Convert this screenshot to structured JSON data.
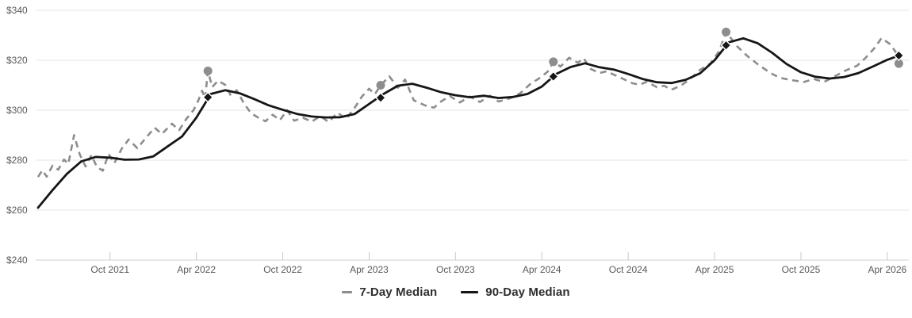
{
  "chart_data": {
    "type": "line",
    "title": "",
    "xlabel": "",
    "ylabel": "",
    "grid": "horizontal",
    "legend_position": "bottom-center",
    "y_axis": {
      "tick_labels": [
        "$340",
        "$320",
        "$300",
        "$280",
        "$260",
        "$240"
      ],
      "tick_values": [
        340,
        320,
        300,
        280,
        260,
        240
      ],
      "range": [
        240,
        344
      ]
    },
    "x_axis": {
      "tick_labels": [
        "Oct 2021",
        "Apr 2022",
        "Oct 2022",
        "Apr 2023",
        "Oct 2023",
        "Apr 2024",
        "Oct 2024",
        "Apr 2025",
        "Oct 2025",
        "Apr 2026"
      ],
      "tick_months": [
        5,
        11,
        17,
        23,
        29,
        35,
        41,
        47,
        53,
        59
      ],
      "months_span": 60,
      "start_label": "May 2021"
    },
    "series": [
      {
        "name": "7-Day Median",
        "style": "dashed",
        "color": "#8d8d8d",
        "points": [
          [
            0,
            273.3
          ],
          [
            0.3,
            276
          ],
          [
            0.6,
            273.4
          ],
          [
            1,
            277.8
          ],
          [
            1.4,
            276.2
          ],
          [
            1.8,
            280.3
          ],
          [
            2.1,
            278.5
          ],
          [
            2.5,
            290
          ],
          [
            2.9,
            282.3
          ],
          [
            3.3,
            277.5
          ],
          [
            3.7,
            282
          ],
          [
            4.1,
            277.2
          ],
          [
            4.5,
            275.8
          ],
          [
            4.9,
            282.5
          ],
          [
            5.3,
            278.8
          ],
          [
            5.8,
            284.5
          ],
          [
            6.3,
            288.3
          ],
          [
            6.9,
            284.8
          ],
          [
            7.5,
            289
          ],
          [
            8.1,
            293
          ],
          [
            8.6,
            290.5
          ],
          [
            9.3,
            294.6
          ],
          [
            9.8,
            292
          ],
          [
            10.3,
            296.5
          ],
          [
            10.8,
            300
          ],
          [
            11.1,
            303.5
          ],
          [
            11.4,
            307.8
          ],
          [
            11.6,
            304.5
          ],
          [
            11.8,
            315.7
          ],
          [
            12.1,
            309.3
          ],
          [
            12.5,
            311.8
          ],
          [
            13,
            310.2
          ],
          [
            13.4,
            305.8
          ],
          [
            13.8,
            308
          ],
          [
            14.3,
            302.8
          ],
          [
            14.8,
            298.8
          ],
          [
            15.3,
            297
          ],
          [
            15.8,
            295.6
          ],
          [
            16.3,
            298.2
          ],
          [
            16.8,
            296
          ],
          [
            17.3,
            300
          ],
          [
            17.8,
            295.8
          ],
          [
            18.4,
            297
          ],
          [
            19,
            295.4
          ],
          [
            19.6,
            297.6
          ],
          [
            20.2,
            295.3
          ],
          [
            20.8,
            299
          ],
          [
            21.4,
            296.6
          ],
          [
            22,
            301
          ],
          [
            22.5,
            305.5
          ],
          [
            23,
            308.6
          ],
          [
            23.4,
            306.4
          ],
          [
            23.8,
            310
          ],
          [
            24.4,
            313.6
          ],
          [
            25,
            309
          ],
          [
            25.5,
            312.3
          ],
          [
            26.1,
            304
          ],
          [
            26.9,
            301.9
          ],
          [
            27.5,
            301
          ],
          [
            28,
            303.5
          ],
          [
            28.6,
            305.7
          ],
          [
            29.3,
            303.1
          ],
          [
            30,
            305.5
          ],
          [
            30.7,
            303.3
          ],
          [
            31.4,
            305.8
          ],
          [
            32,
            303.5
          ],
          [
            32.8,
            304.8
          ],
          [
            33.5,
            306.8
          ],
          [
            34.2,
            310.5
          ],
          [
            34.8,
            312.7
          ],
          [
            35.4,
            315.4
          ],
          [
            35.8,
            319.4
          ],
          [
            36.3,
            317.5
          ],
          [
            36.9,
            321
          ],
          [
            37.5,
            319
          ],
          [
            37.9,
            320.8
          ],
          [
            38.4,
            316.5
          ],
          [
            39,
            314.9
          ],
          [
            39.5,
            315.6
          ],
          [
            40.1,
            314
          ],
          [
            40.7,
            312.4
          ],
          [
            41.3,
            310.8
          ],
          [
            41.8,
            310.2
          ],
          [
            42.3,
            311.4
          ],
          [
            43,
            309.2
          ],
          [
            43.5,
            309.8
          ],
          [
            44,
            308.2
          ],
          [
            44.7,
            310
          ],
          [
            45.3,
            312.5
          ],
          [
            46,
            316.2
          ],
          [
            46.7,
            318.7
          ],
          [
            47.3,
            323.5
          ],
          [
            47.8,
            331.3
          ],
          [
            48.6,
            325.4
          ],
          [
            49.3,
            321.6
          ],
          [
            50,
            318.4
          ],
          [
            50.8,
            315.2
          ],
          [
            51.5,
            313
          ],
          [
            52.4,
            312
          ],
          [
            53.2,
            311.3
          ],
          [
            53.9,
            312.5
          ],
          [
            54.6,
            311.3
          ],
          [
            55.4,
            313.7
          ],
          [
            56.1,
            315.9
          ],
          [
            56.9,
            317.8
          ],
          [
            57.5,
            321
          ],
          [
            58.1,
            324.8
          ],
          [
            58.6,
            328.9
          ],
          [
            59.2,
            326.4
          ],
          [
            59.6,
            323.2
          ],
          [
            59.8,
            318.7
          ]
        ]
      },
      {
        "name": "90-Day Median",
        "style": "solid",
        "color": "#161616",
        "month_step": 1,
        "values": [
          261,
          268,
          274.5,
          279.5,
          281.3,
          281,
          280.2,
          280.3,
          281.5,
          285.5,
          289.5,
          297,
          306.5,
          308,
          306.8,
          304.5,
          302,
          300.2,
          298.5,
          297.5,
          297.1,
          297.2,
          298.5,
          302.5,
          306.5,
          309.8,
          310.6,
          309,
          307.2,
          306,
          305.2,
          305.8,
          304.9,
          305.3,
          306.5,
          309.5,
          314.5,
          317.3,
          318.8,
          317.2,
          316.3,
          314.5,
          312.5,
          311.2,
          310.9,
          312.2,
          314.8,
          320,
          327.2,
          328.8,
          326.8,
          323,
          318.5,
          315.2,
          313.4,
          312.7,
          313.3,
          314.9,
          317.5,
          320.2,
          322.3
        ]
      }
    ],
    "annual_markers": [
      {
        "month": 11.8,
        "near_label": "Apr 2022",
        "seven_day_circle": 315.7,
        "ninety_day_diamond": 305.2
      },
      {
        "month": 23.8,
        "near_label": "Apr 2023",
        "seven_day_circle": 310.0,
        "ninety_day_diamond": 305.0
      },
      {
        "month": 35.8,
        "near_label": "Apr 2024",
        "seven_day_circle": 319.4,
        "ninety_day_diamond": 313.5
      },
      {
        "month": 47.8,
        "near_label": "Apr 2025",
        "seven_day_circle": 331.3,
        "ninety_day_diamond": 326.0
      },
      {
        "month": 59.8,
        "near_label": "Apr 2026",
        "seven_day_circle": 318.7,
        "ninety_day_diamond": 321.9
      }
    ],
    "colors": {
      "gridline": "#e4e4e4",
      "axis_baseline": "#d0d0d0",
      "tick_mark": "#c9c9c9",
      "tick_text": "#5a5a5a",
      "seven_day": "#8d8d8d",
      "ninety_day": "#161616",
      "legend_text": "#2e2e2e"
    }
  },
  "legend": {
    "items": [
      {
        "label": "7-Day Median"
      },
      {
        "label": "90-Day Median"
      }
    ]
  }
}
